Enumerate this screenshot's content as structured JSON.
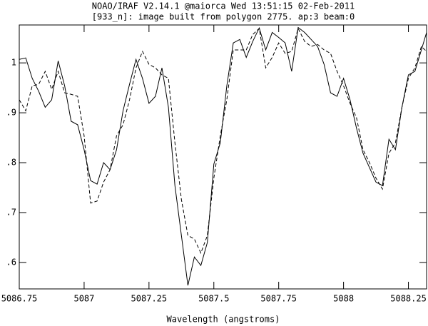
{
  "chart_data": {
    "type": "line",
    "title": "NOAO/IRAF V2.14.1 @maiorca Wed 13:51:15 02-Feb-2011",
    "subtitle": "[933_n]: image built from polygon 2775. ap:3 beam:0",
    "x_label": "Wavelength (angstroms)",
    "x": [
      5086.75,
      5086.775,
      5086.8,
      5086.825,
      5086.85,
      5086.875,
      5086.9,
      5086.925,
      5086.95,
      5086.975,
      5087,
      5087.025,
      5087.05,
      5087.075,
      5087.1,
      5087.125,
      5087.15,
      5087.175,
      5087.2,
      5087.225,
      5087.25,
      5087.275,
      5087.3,
      5087.325,
      5087.35,
      5087.375,
      5087.4,
      5087.425,
      5087.45,
      5087.475,
      5087.5,
      5087.525,
      5087.55,
      5087.575,
      5087.6,
      5087.625,
      5087.65,
      5087.675,
      5087.7,
      5087.725,
      5087.75,
      5087.775,
      5087.8,
      5087.825,
      5087.85,
      5087.875,
      5087.9,
      5087.925,
      5087.95,
      5087.975,
      5088,
      5088.025,
      5088.05,
      5088.075,
      5088.1,
      5088.125,
      5088.15,
      5088.175,
      5088.2,
      5088.225,
      5088.25,
      5088.275,
      5088.3,
      5088.32
    ],
    "series": [
      {
        "color": "#000000",
        "line_style": "solid",
        "values": [
          1.007,
          1.01,
          0.969,
          0.943,
          0.911,
          0.926,
          1.004,
          0.954,
          0.883,
          0.876,
          0.826,
          0.764,
          0.757,
          0.8,
          0.786,
          0.826,
          0.904,
          0.957,
          1.007,
          0.969,
          0.919,
          0.933,
          0.99,
          0.911,
          0.754,
          0.654,
          0.554,
          0.611,
          0.594,
          0.64,
          0.797,
          0.84,
          0.954,
          1.04,
          1.047,
          1.011,
          1.043,
          1.07,
          1.026,
          1.061,
          1.051,
          1.04,
          0.983,
          1.071,
          1.061,
          1.047,
          1.033,
          0.997,
          0.94,
          0.933,
          0.969,
          0.926,
          0.869,
          0.819,
          0.79,
          0.761,
          0.754,
          0.847,
          0.826,
          0.911,
          0.976,
          0.983,
          1.026,
          1.061
        ]
      },
      {
        "color": "#000000",
        "line_style": "dashed",
        "values": [
          0.926,
          0.904,
          0.954,
          0.957,
          0.983,
          0.947,
          0.983,
          0.94,
          0.937,
          0.933,
          0.854,
          0.719,
          0.723,
          0.761,
          0.786,
          0.854,
          0.876,
          0.926,
          0.99,
          1.023,
          0.997,
          0.99,
          0.976,
          0.969,
          0.84,
          0.726,
          0.654,
          0.647,
          0.619,
          0.654,
          0.769,
          0.854,
          0.926,
          1.026,
          1.026,
          1.026,
          1.057,
          1.069,
          0.99,
          1.011,
          1.04,
          1.019,
          1.023,
          1.069,
          1.043,
          1.033,
          1.037,
          1.026,
          1.019,
          0.983,
          0.954,
          0.919,
          0.89,
          0.826,
          0.8,
          0.769,
          0.747,
          0.819,
          0.84,
          0.911,
          0.969,
          0.99,
          1.033,
          1.023
        ]
      }
    ],
    "xlim": [
      5086.75,
      5088.32
    ],
    "xticks": [
      5086.75,
      5087,
      5087.25,
      5087.5,
      5087.75,
      5088,
      5088.25
    ],
    "ylim": [
      0.547,
      1.076
    ],
    "yticks": [
      {
        "value": 0.6,
        "label": ".6"
      },
      {
        "value": 0.7,
        "label": ".7"
      },
      {
        "value": 0.8,
        "label": ".8"
      },
      {
        "value": 0.9,
        "label": ".9"
      },
      1
    ]
  }
}
